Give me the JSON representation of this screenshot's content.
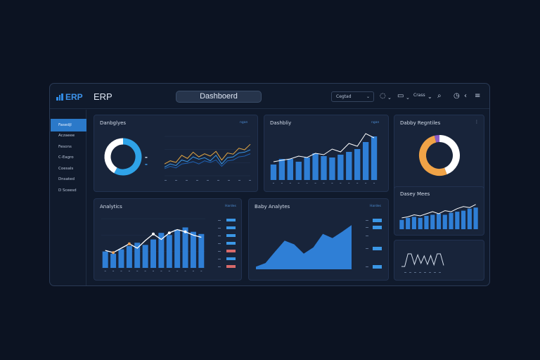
{
  "app": {
    "logo_text": "ERP",
    "title": "ERP",
    "active_tab": "Dashboerd"
  },
  "toolbar": {
    "select_value": "Cegtad",
    "menu_label": "Crass",
    "icons": [
      "refresh-icon",
      "chat-icon",
      "search-icon",
      "clock-icon",
      "back-icon",
      "menu-icon"
    ]
  },
  "sidebar": {
    "items": [
      {
        "label": "Fasedjl",
        "active": true
      },
      {
        "label": "Aczaeee",
        "active": false
      },
      {
        "label": "Fesons",
        "active": false
      },
      {
        "label": "C-Eagro",
        "active": false
      },
      {
        "label": "Coesals",
        "active": false
      },
      {
        "label": "Dnsated",
        "active": false
      },
      {
        "label": "D Sceesd",
        "active": false
      }
    ]
  },
  "cards": {
    "overview": {
      "title": "Danbglyes",
      "subtitle": "ngan"
    },
    "dashboard": {
      "title": "Dashbliy",
      "subtitle": "ngan"
    },
    "ratio": {
      "title": "Dabby Regntiles"
    },
    "analytics": {
      "title": "Analytics",
      "subtitle": "Hardes"
    },
    "baby": {
      "title": "Baby Analytes",
      "subtitle": "Hardes"
    },
    "trend": {
      "title": "Dasey Mees"
    }
  },
  "chart_data": [
    {
      "type": "pie",
      "name": "overview-donut",
      "values": [
        58,
        42
      ],
      "colors": [
        "#2fa3e8",
        "#ffffff"
      ]
    },
    {
      "type": "line",
      "name": "overview-lines",
      "x": [
        0,
        1,
        2,
        3,
        4,
        5,
        6,
        7,
        8,
        9,
        10,
        11,
        12,
        13,
        14,
        15
      ],
      "series": [
        {
          "color": "#e4a743",
          "values": [
            30,
            38,
            34,
            52,
            44,
            60,
            48,
            56,
            50,
            62,
            40,
            58,
            55,
            70,
            66,
            80
          ]
        },
        {
          "color": "#3b97e6",
          "values": [
            22,
            30,
            26,
            40,
            36,
            48,
            42,
            46,
            38,
            52,
            30,
            46,
            48,
            58,
            60,
            66
          ]
        },
        {
          "color": "#1f5fb0",
          "values": [
            18,
            24,
            20,
            30,
            32,
            36,
            30,
            38,
            34,
            40,
            24,
            38,
            40,
            48,
            50,
            56
          ]
        }
      ],
      "ylim": [
        0,
        100
      ]
    },
    {
      "type": "bar",
      "name": "dashboard-bars",
      "values": [
        22,
        30,
        30,
        26,
        32,
        38,
        34,
        32,
        36,
        40,
        44,
        54,
        62
      ],
      "line": [
        26,
        28,
        30,
        34,
        32,
        38,
        36,
        44,
        40,
        52,
        48,
        66,
        60
      ],
      "ylim": [
        0,
        70
      ]
    },
    {
      "type": "pie",
      "name": "ratio-donut",
      "values": [
        44,
        52,
        4
      ],
      "colors": [
        "#ffffff",
        "#f0a347",
        "#8b5cc6"
      ]
    },
    {
      "type": "bar",
      "name": "analytics-bars",
      "values": [
        30,
        26,
        34,
        40,
        46,
        42,
        52,
        64,
        60,
        70,
        74,
        66,
        62
      ],
      "line": [
        32,
        28,
        36,
        44,
        36,
        50,
        62,
        52,
        64,
        70,
        66,
        60,
        56
      ],
      "ylim": [
        0,
        90
      ]
    },
    {
      "type": "area",
      "name": "baby-area",
      "values": [
        5,
        12,
        34,
        55,
        48,
        30,
        42,
        68,
        60,
        72,
        85
      ],
      "ylim": [
        0,
        100
      ]
    },
    {
      "type": "bar",
      "name": "trend-bars",
      "values": [
        18,
        22,
        24,
        22,
        26,
        28,
        30,
        28,
        32,
        34,
        36,
        40,
        42
      ],
      "line": [
        22,
        24,
        28,
        26,
        30,
        34,
        30,
        36,
        34,
        40,
        44,
        42,
        48
      ],
      "ylim": [
        0,
        60
      ]
    },
    {
      "type": "line",
      "name": "mini-step",
      "values": [
        10,
        10,
        70,
        70,
        20,
        65,
        25,
        60,
        20,
        62,
        18,
        70,
        70,
        15
      ],
      "ylim": [
        0,
        100
      ]
    }
  ]
}
